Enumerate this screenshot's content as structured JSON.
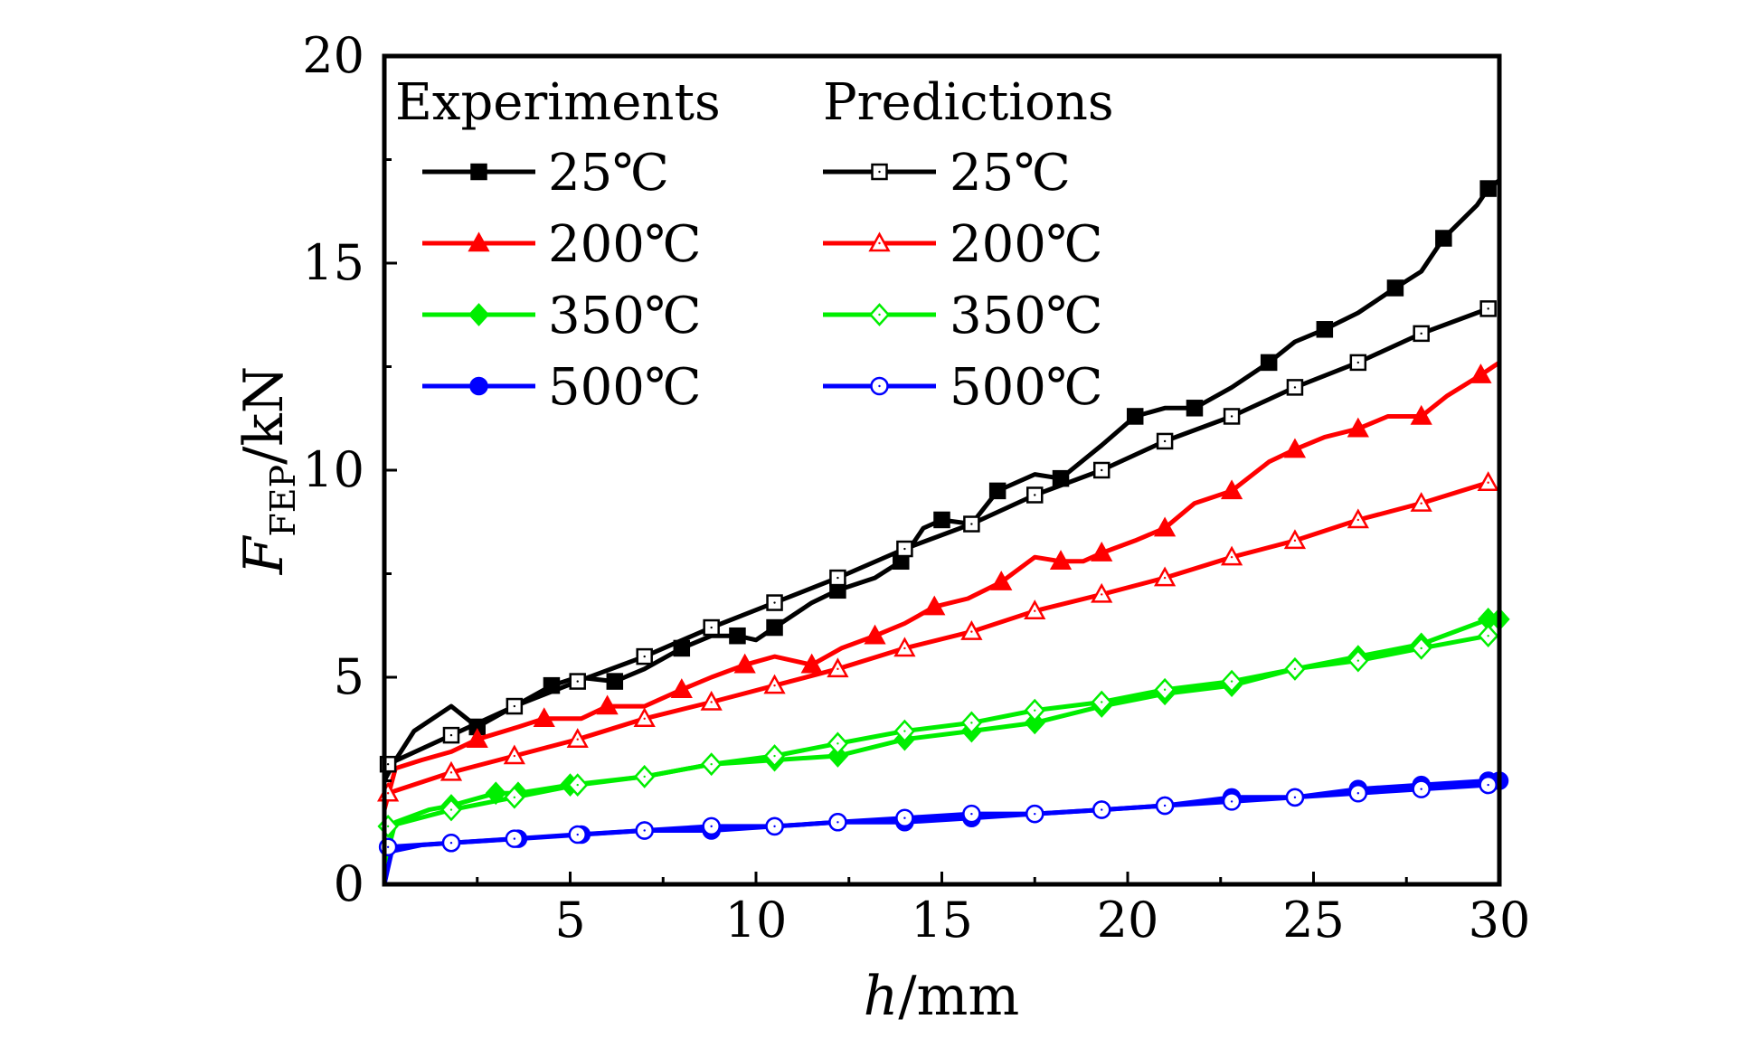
{
  "chart_data": {
    "type": "line",
    "xlabel_var": "h",
    "xlabel_unit": "/mm",
    "ylabel_var": "F",
    "ylabel_sub": "FEP",
    "ylabel_unit": "/kN",
    "xlim": [
      0,
      30
    ],
    "ylim": [
      0,
      20
    ],
    "x_ticks": [
      "5",
      "10",
      "15",
      "20",
      "25",
      "30"
    ],
    "y_ticks": [
      "0",
      "5",
      "10",
      "15",
      "20"
    ],
    "grid": false,
    "legend_position": "top-left",
    "legend_headers": [
      "Experiments",
      "Predictions"
    ],
    "series": [
      {
        "name": "25℃",
        "group": "Experiments",
        "color": "#000000",
        "marker": "square",
        "filled": true,
        "points": [
          [
            0,
            2.5
          ],
          [
            0.3,
            3.0
          ],
          [
            0.8,
            3.7
          ],
          [
            1.8,
            4.3
          ],
          [
            2.5,
            3.8
          ],
          [
            3.5,
            4.3
          ],
          [
            4.5,
            4.8
          ],
          [
            5.2,
            5.0
          ],
          [
            6.2,
            4.9
          ],
          [
            7,
            5.2
          ],
          [
            8,
            5.7
          ],
          [
            8.8,
            6.0
          ],
          [
            9.5,
            6.0
          ],
          [
            10,
            5.9
          ],
          [
            10.5,
            6.2
          ],
          [
            11.5,
            6.8
          ],
          [
            12.2,
            7.1
          ],
          [
            13.2,
            7.4
          ],
          [
            13.9,
            7.8
          ],
          [
            14.5,
            8.6
          ],
          [
            15,
            8.8
          ],
          [
            15.8,
            8.7
          ],
          [
            16.5,
            9.5
          ],
          [
            17.5,
            9.9
          ],
          [
            18.2,
            9.8
          ],
          [
            19.3,
            10.6
          ],
          [
            20.2,
            11.3
          ],
          [
            21,
            11.5
          ],
          [
            21.8,
            11.5
          ],
          [
            22.8,
            12.0
          ],
          [
            23.8,
            12.6
          ],
          [
            24.5,
            13.1
          ],
          [
            25.3,
            13.4
          ],
          [
            26.2,
            13.8
          ],
          [
            27.2,
            14.4
          ],
          [
            27.9,
            14.8
          ],
          [
            28.5,
            15.6
          ],
          [
            29.4,
            16.4
          ],
          [
            29.7,
            16.8
          ],
          [
            30,
            17.0
          ]
        ]
      },
      {
        "name": "200℃",
        "group": "Experiments",
        "color": "#ff0000",
        "marker": "triangle",
        "filled": true,
        "points": [
          [
            0,
            1.8
          ],
          [
            0.3,
            2.8
          ],
          [
            1,
            3.0
          ],
          [
            1.8,
            3.2
          ],
          [
            2.5,
            3.5
          ],
          [
            3.6,
            3.8
          ],
          [
            4.3,
            4.0
          ],
          [
            5.3,
            4.0
          ],
          [
            6,
            4.3
          ],
          [
            7,
            4.3
          ],
          [
            8,
            4.7
          ],
          [
            8.8,
            5.0
          ],
          [
            9.7,
            5.3
          ],
          [
            10.5,
            5.5
          ],
          [
            11.5,
            5.3
          ],
          [
            12.3,
            5.7
          ],
          [
            13.2,
            6.0
          ],
          [
            14,
            6.3
          ],
          [
            14.8,
            6.7
          ],
          [
            15.7,
            6.9
          ],
          [
            16.6,
            7.3
          ],
          [
            17.5,
            7.9
          ],
          [
            18.2,
            7.8
          ],
          [
            18.8,
            7.8
          ],
          [
            19.3,
            8.0
          ],
          [
            20.2,
            8.3
          ],
          [
            21,
            8.6
          ],
          [
            21.8,
            9.2
          ],
          [
            22.8,
            9.5
          ],
          [
            23.8,
            10.2
          ],
          [
            24.5,
            10.5
          ],
          [
            25.3,
            10.8
          ],
          [
            26.2,
            11.0
          ],
          [
            27,
            11.3
          ],
          [
            27.9,
            11.3
          ],
          [
            28.6,
            11.8
          ],
          [
            29.5,
            12.3
          ],
          [
            30,
            12.6
          ]
        ]
      },
      {
        "name": "350℃",
        "group": "Experiments",
        "color": "#00ee00",
        "marker": "diamond",
        "filled": true,
        "points": [
          [
            0,
            0.5
          ],
          [
            0.3,
            1.5
          ],
          [
            1.2,
            1.8
          ],
          [
            1.8,
            1.9
          ],
          [
            3,
            2.2
          ],
          [
            3.6,
            2.2
          ],
          [
            5,
            2.4
          ],
          [
            7,
            2.6
          ],
          [
            8.8,
            2.9
          ],
          [
            10.5,
            3.0
          ],
          [
            12.2,
            3.1
          ],
          [
            14,
            3.5
          ],
          [
            15.8,
            3.7
          ],
          [
            17.5,
            3.9
          ],
          [
            19.3,
            4.3
          ],
          [
            21,
            4.6
          ],
          [
            22.8,
            4.8
          ],
          [
            24.5,
            5.2
          ],
          [
            26.2,
            5.5
          ],
          [
            27.9,
            5.8
          ],
          [
            29.7,
            6.4
          ],
          [
            30,
            6.4
          ]
        ]
      },
      {
        "name": "500℃",
        "group": "Experiments",
        "color": "#0000ff",
        "marker": "circle",
        "filled": true,
        "points": [
          [
            0,
            0.0
          ],
          [
            0.2,
            0.8
          ],
          [
            1,
            0.95
          ],
          [
            1.8,
            1.0
          ],
          [
            3.6,
            1.1
          ],
          [
            5.3,
            1.2
          ],
          [
            7,
            1.3
          ],
          [
            8.8,
            1.3
          ],
          [
            10.5,
            1.4
          ],
          [
            12.2,
            1.5
          ],
          [
            14,
            1.5
          ],
          [
            15.8,
            1.6
          ],
          [
            17.5,
            1.7
          ],
          [
            19.3,
            1.8
          ],
          [
            21,
            1.9
          ],
          [
            22.8,
            2.1
          ],
          [
            24.5,
            2.1
          ],
          [
            26.2,
            2.3
          ],
          [
            27.9,
            2.4
          ],
          [
            29.7,
            2.5
          ],
          [
            30,
            2.5
          ]
        ]
      },
      {
        "name": "25℃",
        "group": "Predictions",
        "color": "#000000",
        "marker": "square",
        "filled": false,
        "points": [
          [
            0.1,
            2.9
          ],
          [
            1.8,
            3.6
          ],
          [
            3.5,
            4.3
          ],
          [
            5.2,
            4.9
          ],
          [
            7,
            5.5
          ],
          [
            8.8,
            6.2
          ],
          [
            10.5,
            6.8
          ],
          [
            12.2,
            7.4
          ],
          [
            14,
            8.1
          ],
          [
            15.8,
            8.7
          ],
          [
            17.5,
            9.4
          ],
          [
            19.3,
            10.0
          ],
          [
            21,
            10.7
          ],
          [
            22.8,
            11.3
          ],
          [
            24.5,
            12.0
          ],
          [
            26.2,
            12.6
          ],
          [
            27.9,
            13.3
          ],
          [
            29.7,
            13.9
          ]
        ]
      },
      {
        "name": "200℃",
        "group": "Predictions",
        "color": "#ff0000",
        "marker": "triangle",
        "filled": false,
        "points": [
          [
            0.1,
            2.2
          ],
          [
            1.8,
            2.7
          ],
          [
            3.5,
            3.1
          ],
          [
            5.2,
            3.5
          ],
          [
            7,
            4.0
          ],
          [
            8.8,
            4.4
          ],
          [
            10.5,
            4.8
          ],
          [
            12.2,
            5.2
          ],
          [
            14,
            5.7
          ],
          [
            15.8,
            6.1
          ],
          [
            17.5,
            6.6
          ],
          [
            19.3,
            7.0
          ],
          [
            21,
            7.4
          ],
          [
            22.8,
            7.9
          ],
          [
            24.5,
            8.3
          ],
          [
            26.2,
            8.8
          ],
          [
            27.9,
            9.2
          ],
          [
            29.7,
            9.7
          ]
        ]
      },
      {
        "name": "350℃",
        "group": "Predictions",
        "color": "#00ee00",
        "marker": "diamond",
        "filled": false,
        "points": [
          [
            0.1,
            1.4
          ],
          [
            1.8,
            1.8
          ],
          [
            3.5,
            2.1
          ],
          [
            5.2,
            2.4
          ],
          [
            7,
            2.6
          ],
          [
            8.8,
            2.9
          ],
          [
            10.5,
            3.1
          ],
          [
            12.2,
            3.4
          ],
          [
            14,
            3.7
          ],
          [
            15.8,
            3.9
          ],
          [
            17.5,
            4.2
          ],
          [
            19.3,
            4.4
          ],
          [
            21,
            4.7
          ],
          [
            22.8,
            4.9
          ],
          [
            24.5,
            5.2
          ],
          [
            26.2,
            5.4
          ],
          [
            27.9,
            5.7
          ],
          [
            29.7,
            6.0
          ]
        ]
      },
      {
        "name": "500℃",
        "group": "Predictions",
        "color": "#0000ff",
        "marker": "circle",
        "filled": false,
        "points": [
          [
            0.1,
            0.9
          ],
          [
            1.8,
            1.0
          ],
          [
            3.5,
            1.1
          ],
          [
            5.2,
            1.2
          ],
          [
            7,
            1.3
          ],
          [
            8.8,
            1.4
          ],
          [
            10.5,
            1.4
          ],
          [
            12.2,
            1.5
          ],
          [
            14,
            1.6
          ],
          [
            15.8,
            1.7
          ],
          [
            17.5,
            1.7
          ],
          [
            19.3,
            1.8
          ],
          [
            21,
            1.9
          ],
          [
            22.8,
            2.0
          ],
          [
            24.5,
            2.1
          ],
          [
            26.2,
            2.2
          ],
          [
            27.9,
            2.3
          ],
          [
            29.7,
            2.4
          ]
        ]
      }
    ]
  }
}
